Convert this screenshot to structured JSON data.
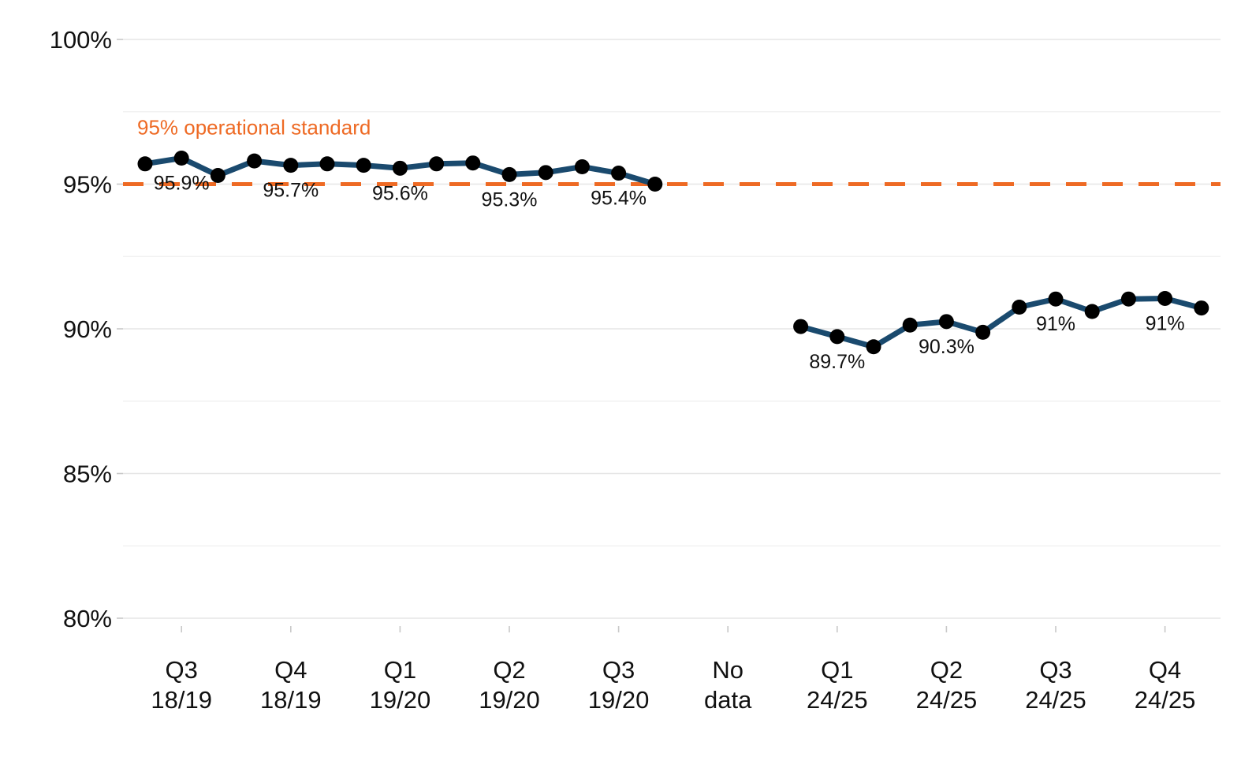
{
  "colors": {
    "series_line": "#1a4a6e",
    "point": "#000000",
    "reference": "#ee6a24"
  },
  "chart_data": {
    "type": "line",
    "title": "",
    "xlabel": "",
    "ylabel": "",
    "ylim": [
      0.79,
      1.0
    ],
    "y_ticks": [
      {
        "value": 0.8,
        "label": "80%"
      },
      {
        "value": 0.85,
        "label": "85%"
      },
      {
        "value": 0.9,
        "label": "90%"
      },
      {
        "value": 0.95,
        "label": "95%"
      },
      {
        "value": 1.0,
        "label": "100%"
      }
    ],
    "x_ticks": [
      {
        "index": 1,
        "lines": [
          "Q3",
          "18/19"
        ]
      },
      {
        "index": 4,
        "lines": [
          "Q4",
          "18/19"
        ]
      },
      {
        "index": 7,
        "lines": [
          "Q1",
          "19/20"
        ]
      },
      {
        "index": 10,
        "lines": [
          "Q2",
          "19/20"
        ]
      },
      {
        "index": 13,
        "lines": [
          "Q3",
          "19/20"
        ]
      },
      {
        "index": 16,
        "lines": [
          "No",
          "data"
        ]
      },
      {
        "index": 19,
        "lines": [
          "Q1",
          "24/25"
        ]
      },
      {
        "index": 22,
        "lines": [
          "Q2",
          "24/25"
        ]
      },
      {
        "index": 25,
        "lines": [
          "Q3",
          "24/25"
        ]
      },
      {
        "index": 28,
        "lines": [
          "Q4",
          "24/25"
        ]
      }
    ],
    "segments": [
      {
        "values": [
          {
            "x": 0,
            "y": 0.957
          },
          {
            "x": 1,
            "y": 0.959
          },
          {
            "x": 2,
            "y": 0.953
          },
          {
            "x": 3,
            "y": 0.958
          },
          {
            "x": 4,
            "y": 0.9565
          },
          {
            "x": 5,
            "y": 0.957
          },
          {
            "x": 6,
            "y": 0.9565
          },
          {
            "x": 7,
            "y": 0.9555
          },
          {
            "x": 8,
            "y": 0.957
          },
          {
            "x": 9,
            "y": 0.9573
          },
          {
            "x": 10,
            "y": 0.9533
          },
          {
            "x": 11,
            "y": 0.954
          },
          {
            "x": 12,
            "y": 0.956
          },
          {
            "x": 13,
            "y": 0.9538
          },
          {
            "x": 14,
            "y": 0.95
          }
        ]
      },
      {
        "values": [
          {
            "x": 18,
            "y": 0.9008
          },
          {
            "x": 19,
            "y": 0.8973
          },
          {
            "x": 20,
            "y": 0.8938
          },
          {
            "x": 21,
            "y": 0.9013
          },
          {
            "x": 22,
            "y": 0.9025
          },
          {
            "x": 23,
            "y": 0.8988
          },
          {
            "x": 24,
            "y": 0.9075
          },
          {
            "x": 25,
            "y": 0.9103
          },
          {
            "x": 26,
            "y": 0.906
          },
          {
            "x": 27,
            "y": 0.9103
          },
          {
            "x": 28,
            "y": 0.9105
          },
          {
            "x": 29,
            "y": 0.9072
          }
        ]
      }
    ],
    "data_labels": [
      {
        "x": 1,
        "y": 0.959,
        "text": "95.9%"
      },
      {
        "x": 4,
        "y": 0.9565,
        "text": "95.7%"
      },
      {
        "x": 7,
        "y": 0.9555,
        "text": "95.6%"
      },
      {
        "x": 10,
        "y": 0.9533,
        "text": "95.3%"
      },
      {
        "x": 13,
        "y": 0.9538,
        "text": "95.4%"
      },
      {
        "x": 19,
        "y": 0.8973,
        "text": "89.7%"
      },
      {
        "x": 22,
        "y": 0.9025,
        "text": "90.3%"
      },
      {
        "x": 25,
        "y": 0.9103,
        "text": "91%"
      },
      {
        "x": 28,
        "y": 0.9105,
        "text": "91%"
      }
    ],
    "reference_line": {
      "y": 0.95,
      "label": "95% operational standard",
      "style": "dashed"
    },
    "grid": true,
    "legend": "none"
  }
}
